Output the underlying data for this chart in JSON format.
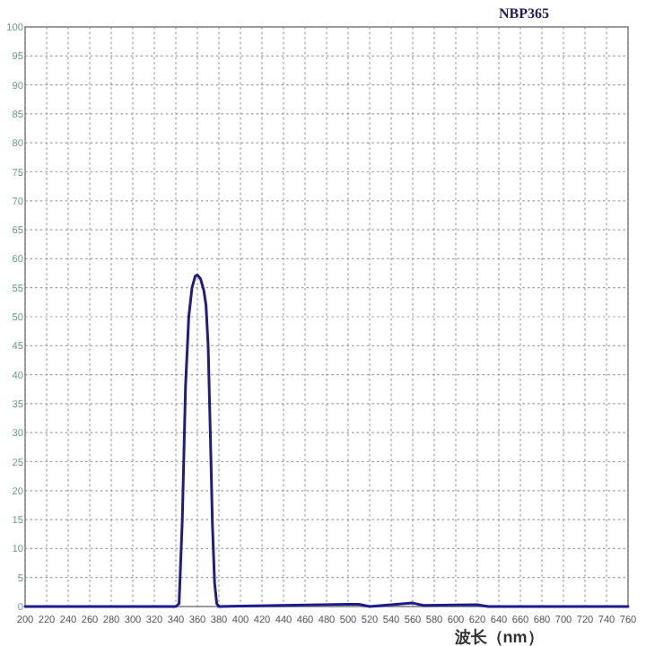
{
  "chart_data": {
    "type": "line",
    "title": "NBP365",
    "xlabel": "波长（nm）",
    "xlim": [
      200,
      760
    ],
    "ylim": [
      0,
      100
    ],
    "xticks": [
      200,
      220,
      240,
      260,
      280,
      300,
      320,
      340,
      360,
      380,
      400,
      420,
      440,
      460,
      480,
      500,
      520,
      540,
      560,
      580,
      600,
      620,
      640,
      660,
      680,
      700,
      720,
      740,
      760
    ],
    "yticks": [
      0,
      5,
      10,
      15,
      20,
      25,
      30,
      35,
      40,
      45,
      50,
      55,
      60,
      65,
      70,
      75,
      80,
      85,
      90,
      95,
      100
    ],
    "grid": true,
    "marker": "none",
    "line_style": "solid",
    "series": [
      {
        "color": "#1c1c8a",
        "x": [
          200,
          340,
          343,
          346,
          349,
          352,
          355,
          358,
          360,
          363,
          366,
          368,
          370,
          372,
          374,
          376,
          378,
          380,
          500,
          510,
          520,
          560,
          570,
          620,
          630,
          760
        ],
        "values": [
          0,
          0,
          0.5,
          15,
          38,
          50,
          55,
          57,
          57.2,
          56.5,
          54.5,
          52,
          45,
          30,
          14,
          4,
          0.5,
          0,
          0.4,
          0.4,
          0,
          0.6,
          0.2,
          0.3,
          0,
          0
        ]
      }
    ]
  }
}
